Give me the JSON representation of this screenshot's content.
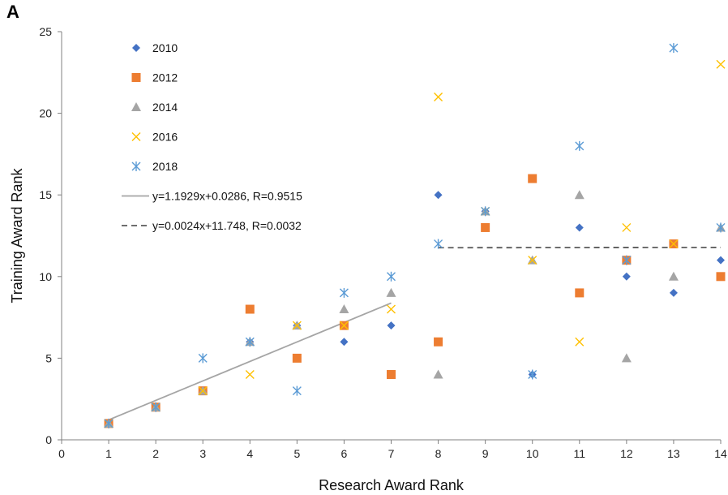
{
  "panel_label": "A",
  "chart_data": {
    "type": "scatter",
    "xlabel": "Research Award Rank",
    "ylabel": "Training Award Rank",
    "xlim": [
      0,
      14
    ],
    "ylim": [
      0,
      25
    ],
    "xticks": [
      0,
      1,
      2,
      3,
      4,
      5,
      6,
      7,
      8,
      9,
      10,
      11,
      12,
      13,
      14
    ],
    "yticks": [
      0,
      5,
      10,
      15,
      20,
      25
    ],
    "grid": false,
    "legend_position": "top-left",
    "series": [
      {
        "name": "2010",
        "marker": "diamond",
        "color": "#4472C4",
        "points": [
          [
            1,
            1
          ],
          [
            2,
            2
          ],
          [
            3,
            3
          ],
          [
            4,
            6
          ],
          [
            5,
            7
          ],
          [
            6,
            6
          ],
          [
            7,
            7
          ],
          [
            8,
            15
          ],
          [
            9,
            14
          ],
          [
            10,
            4
          ],
          [
            11,
            13
          ],
          [
            12,
            10
          ],
          [
            13,
            9
          ],
          [
            14,
            11
          ]
        ]
      },
      {
        "name": "2012",
        "marker": "square",
        "color": "#ED7D31",
        "points": [
          [
            1,
            1
          ],
          [
            2,
            2
          ],
          [
            3,
            3
          ],
          [
            4,
            8
          ],
          [
            5,
            5
          ],
          [
            6,
            7
          ],
          [
            7,
            4
          ],
          [
            8,
            6
          ],
          [
            9,
            13
          ],
          [
            10,
            16
          ],
          [
            11,
            9
          ],
          [
            12,
            11
          ],
          [
            13,
            12
          ],
          [
            14,
            10
          ]
        ]
      },
      {
        "name": "2014",
        "marker": "triangle",
        "color": "#A5A5A5",
        "points": [
          [
            1,
            1
          ],
          [
            2,
            2
          ],
          [
            3,
            3
          ],
          [
            4,
            6
          ],
          [
            5,
            7
          ],
          [
            6,
            8
          ],
          [
            7,
            9
          ],
          [
            8,
            4
          ],
          [
            9,
            14
          ],
          [
            10,
            11
          ],
          [
            11,
            15
          ],
          [
            12,
            5
          ],
          [
            13,
            10
          ],
          [
            14,
            13
          ]
        ]
      },
      {
        "name": "2016",
        "marker": "x",
        "color": "#FFC000",
        "points": [
          [
            1,
            1
          ],
          [
            2,
            2
          ],
          [
            3,
            3
          ],
          [
            4,
            4
          ],
          [
            5,
            7
          ],
          [
            6,
            7
          ],
          [
            7,
            8
          ],
          [
            8,
            21
          ],
          [
            9,
            14
          ],
          [
            10,
            11
          ],
          [
            11,
            6
          ],
          [
            12,
            13
          ],
          [
            13,
            12
          ],
          [
            14,
            23
          ]
        ]
      },
      {
        "name": "2018",
        "marker": "asterisk",
        "color": "#5B9BD5",
        "points": [
          [
            1,
            1
          ],
          [
            2,
            2
          ],
          [
            3,
            5
          ],
          [
            4,
            6
          ],
          [
            5,
            3
          ],
          [
            6,
            9
          ],
          [
            7,
            10
          ],
          [
            8,
            12
          ],
          [
            9,
            14
          ],
          [
            10,
            4
          ],
          [
            11,
            18
          ],
          [
            12,
            11
          ],
          [
            13,
            24
          ],
          [
            14,
            13
          ]
        ]
      }
    ],
    "trendlines": [
      {
        "label": "y=1.1929x+0.0286, R=0.9515",
        "slope": 1.1929,
        "intercept": 0.0286,
        "x_range": [
          1,
          7
        ],
        "style": "solid",
        "color": "#A5A5A5"
      },
      {
        "label": "y=0.0024x+11.748, R=0.0032",
        "slope": 0.0024,
        "intercept": 11.748,
        "x_range": [
          8,
          14
        ],
        "style": "dashed",
        "color": "#595959"
      }
    ]
  }
}
